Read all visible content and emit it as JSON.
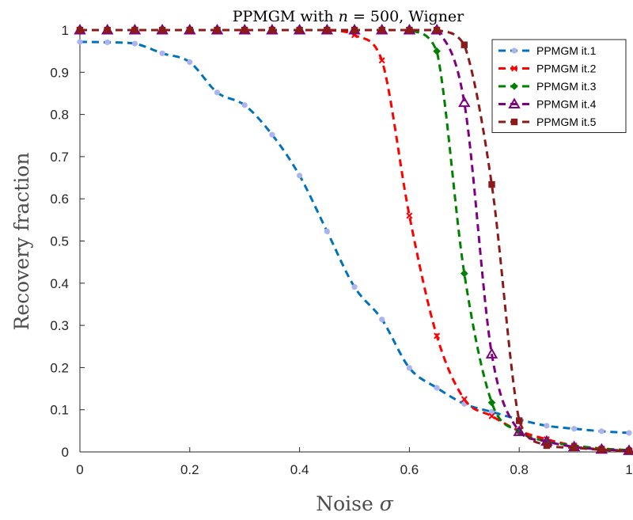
{
  "chart_data": {
    "type": "line",
    "title": "PPMGM with n = 500, Wigner",
    "title_parts": {
      "prefix": "PPMGM with ",
      "var": "n",
      "suffix": " = 500, Wigner"
    },
    "xlabel": "Noise σ",
    "xlabel_parts": {
      "text": "Noise ",
      "var": "σ"
    },
    "ylabel": "Recovery fraction",
    "xlim": [
      0,
      1
    ],
    "ylim": [
      0,
      1
    ],
    "xticks": [
      0,
      0.2,
      0.4,
      0.6,
      0.8,
      1
    ],
    "xtick_labels": [
      "0",
      "0.2",
      "0.4",
      "0.6",
      "0.8",
      "1"
    ],
    "yticks": [
      0,
      0.1,
      0.2,
      0.3,
      0.4,
      0.5,
      0.6,
      0.7,
      0.8,
      0.9,
      1
    ],
    "ytick_labels": [
      "0",
      "0.1",
      "0.2",
      "0.3",
      "0.4",
      "0.5",
      "0.6",
      "0.7",
      "0.8",
      "0.9",
      "1"
    ],
    "grid": false,
    "legend_position": "top-right",
    "x": [
      0,
      0.05,
      0.1,
      0.15,
      0.2,
      0.25,
      0.3,
      0.35,
      0.4,
      0.45,
      0.5,
      0.55,
      0.6,
      0.65,
      0.7,
      0.75,
      0.8,
      0.85,
      0.9,
      0.95,
      1
    ],
    "series": [
      {
        "name": "PPMGM it.1",
        "color": "#0072BD",
        "marker": "dot",
        "marker_color": "#aab4ee",
        "values": [
          0.972,
          0.971,
          0.968,
          0.945,
          0.924,
          0.852,
          0.822,
          0.752,
          0.655,
          0.523,
          0.391,
          0.314,
          0.199,
          0.152,
          0.114,
          0.095,
          0.077,
          0.062,
          0.055,
          0.049,
          0.045
        ]
      },
      {
        "name": "PPMGM it.2",
        "color": "#FF0000",
        "marker": "x",
        "marker_color": "#FF0000",
        "values": [
          1,
          1,
          1,
          1,
          1,
          1,
          1,
          1,
          1,
          1,
          0.988,
          0.928,
          0.56,
          0.275,
          0.125,
          0.085,
          0.05,
          0.03,
          0.015,
          0.008,
          0.004
        ]
      },
      {
        "name": "PPMGM it.3",
        "color": "#008000",
        "marker": "diamond",
        "marker_color": "#008000",
        "values": [
          1,
          1,
          1,
          1,
          1,
          1,
          1,
          1,
          1,
          1,
          1,
          1,
          1,
          0.95,
          0.423,
          0.117,
          0.048,
          0.025,
          0.015,
          0.008,
          0.004
        ]
      },
      {
        "name": "PPMGM it.4",
        "color": "#7E0080",
        "marker": "triangle",
        "marker_color": "#7E0080",
        "values": [
          1,
          1,
          1,
          1,
          1,
          1,
          1,
          1,
          1,
          1,
          1,
          1,
          1,
          1,
          0.828,
          0.232,
          0.048,
          0.025,
          0.012,
          0.006,
          0.003
        ]
      },
      {
        "name": "PPMGM it.5",
        "color": "#8B1A1A",
        "marker": "square",
        "marker_color": "#8B1A1A",
        "values": [
          1,
          1,
          1,
          1,
          1,
          1,
          1,
          1,
          1,
          1,
          1,
          1,
          1,
          1,
          0.965,
          0.634,
          0.074,
          0.015,
          0.01,
          0.005,
          0.002
        ]
      }
    ]
  }
}
